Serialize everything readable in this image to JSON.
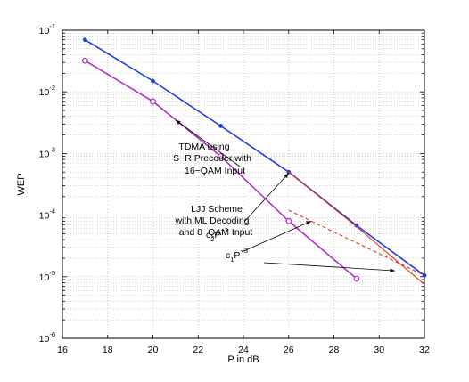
{
  "chart_data": {
    "type": "line",
    "xlabel": "P in dB",
    "ylabel": "WEP",
    "xlim": [
      16,
      32
    ],
    "ylim_exp": [
      -6,
      -1
    ],
    "yscale": "log",
    "grid": true,
    "x_ticks": [
      16,
      18,
      20,
      22,
      24,
      26,
      28,
      30,
      32
    ],
    "y_ticks": [
      {
        "base": "10",
        "exp": "-1",
        "value": 0.1
      },
      {
        "base": "10",
        "exp": "-2",
        "value": 0.01
      },
      {
        "base": "10",
        "exp": "-3",
        "value": 0.001
      },
      {
        "base": "10",
        "exp": "-4",
        "value": 0.0001
      },
      {
        "base": "10",
        "exp": "-5",
        "value": 1e-05
      },
      {
        "base": "10",
        "exp": "-6",
        "value": 1e-06
      }
    ],
    "series": [
      {
        "color": "#1f3fe0",
        "marker": "dot",
        "points": [
          [
            17,
            0.07
          ],
          [
            20,
            0.015
          ],
          [
            23,
            0.0028
          ],
          [
            26,
            0.0005
          ],
          [
            29,
            6.8e-05
          ],
          [
            32,
            1.05e-05
          ]
        ]
      },
      {
        "color": "#b32ec9",
        "marker": "circle",
        "points": [
          [
            17,
            0.032
          ],
          [
            20,
            0.007
          ],
          [
            23,
            0.0009
          ],
          [
            26,
            8e-05
          ],
          [
            29,
            9.3e-06
          ]
        ]
      },
      {
        "color": "#e83020",
        "style": "solid",
        "points": [
          [
            26,
            0.0005
          ],
          [
            29,
            6.5e-05
          ],
          [
            32,
            7.5e-06
          ]
        ]
      },
      {
        "color": "#e83020",
        "style": "dashed",
        "points": [
          [
            26,
            0.00012
          ],
          [
            32,
            1.05e-05
          ]
        ]
      }
    ],
    "annotations": [
      {
        "lines": [
          "TDMA using",
          "S−R Precoder with",
          "16−QAM Input"
        ],
        "target": [
          21,
          0.0035
        ]
      },
      {
        "lines": [
          "LJJ Scheme",
          "with ML Decoding",
          "and 8−QAM Input"
        ],
        "target": [
          26,
          0.00048
        ]
      },
      {
        "lines": [
          "c2P−2"
        ],
        "label_parts": {
          "c": "c",
          "sub": "2",
          "p": "P",
          "sup": "−2"
        },
        "target": [
          27,
          8e-05
        ]
      },
      {
        "lines": [
          "c1P−3"
        ],
        "label_parts": {
          "c": "c",
          "sub": "1",
          "p": "P",
          "sup": "−3"
        },
        "target": [
          30.7,
          1.25e-05
        ]
      }
    ]
  }
}
